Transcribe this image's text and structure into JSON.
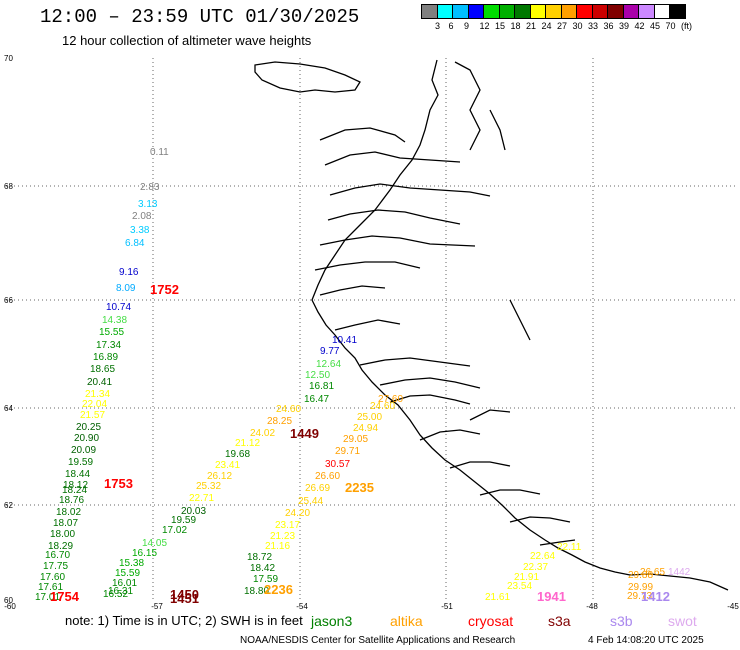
{
  "header": {
    "title": "12:00 – 23:59 UTC 01/30/2025",
    "subtitle": "12 hour collection of altimeter wave heights"
  },
  "scale": {
    "colors": [
      "#808080",
      "#00ffff",
      "#00bfff",
      "#0000ff",
      "#00dd00",
      "#00b000",
      "#007800",
      "#ffff00",
      "#ffd000",
      "#ffa000",
      "#ff0000",
      "#cc0000",
      "#800000",
      "#aa00aa",
      "#cc88ff",
      "#ffffff",
      "#000000"
    ],
    "labels": [
      "3",
      "6",
      "9",
      "12",
      "15",
      "18",
      "21",
      "24",
      "27",
      "30",
      "33",
      "36",
      "39",
      "42",
      "45",
      "70",
      "(ft)"
    ]
  },
  "axes": {
    "lat_labels": [
      "70",
      "68",
      "66",
      "64",
      "62",
      "60"
    ],
    "lon_labels": [
      "-60",
      "-57",
      "-54",
      "-51",
      "-48",
      "-45"
    ]
  },
  "readings": [
    {
      "t": "0.11",
      "c": "#808080"
    },
    {
      "t": "2.83",
      "c": "#808080"
    },
    {
      "t": "3.13",
      "c": "#00ccff"
    },
    {
      "t": "2.08",
      "c": "#808080"
    },
    {
      "t": "3.38",
      "c": "#00ccff"
    },
    {
      "t": "6.84",
      "c": "#00bfff"
    },
    {
      "t": "9.16",
      "c": "#0000cc"
    },
    {
      "t": "8.09",
      "c": "#00aaff"
    },
    {
      "t": "10.74",
      "c": "#0000cc"
    },
    {
      "t": "14.38",
      "c": "#44dd44"
    },
    {
      "t": "15.55",
      "c": "#00aa00"
    },
    {
      "t": "17.34",
      "c": "#008800"
    },
    {
      "t": "16.89",
      "c": "#008800"
    },
    {
      "t": "18.65",
      "c": "#007000"
    },
    {
      "t": "20.41",
      "c": "#006000"
    },
    {
      "t": "21.34",
      "c": "#ffff00"
    },
    {
      "t": "22.04",
      "c": "#ffff00"
    },
    {
      "t": "21.57",
      "c": "#ffff00"
    },
    {
      "t": "20.25",
      "c": "#006000"
    },
    {
      "t": "20.90",
      "c": "#006000"
    },
    {
      "t": "20.09",
      "c": "#006000"
    },
    {
      "t": "19.59",
      "c": "#007000"
    },
    {
      "t": "18.44",
      "c": "#007000"
    },
    {
      "t": "18.12",
      "c": "#007000"
    },
    {
      "t": "18.24",
      "c": "#007000"
    },
    {
      "t": "18.76",
      "c": "#007000"
    },
    {
      "t": "18.02",
      "c": "#007000"
    },
    {
      "t": "18.07",
      "c": "#007000"
    },
    {
      "t": "18.00",
      "c": "#007000"
    },
    {
      "t": "18.29",
      "c": "#007000"
    },
    {
      "t": "16.70",
      "c": "#008800"
    },
    {
      "t": "17.75",
      "c": "#008800"
    },
    {
      "t": "17.60",
      "c": "#008800"
    },
    {
      "t": "17.61",
      "c": "#008800"
    },
    {
      "t": "17.01",
      "c": "#008800"
    },
    {
      "t": "16.52",
      "c": "#008800"
    },
    {
      "t": "16.31",
      "c": "#008800"
    },
    {
      "t": "16.01",
      "c": "#008800"
    },
    {
      "t": "15.59",
      "c": "#00aa00"
    },
    {
      "t": "15.38",
      "c": "#00aa00"
    },
    {
      "t": "16.15",
      "c": "#00aa00"
    },
    {
      "t": "14.05",
      "c": "#44dd44"
    },
    {
      "t": "17.02",
      "c": "#008800"
    },
    {
      "t": "19.59",
      "c": "#007000"
    },
    {
      "t": "20.03",
      "c": "#006000"
    },
    {
      "t": "22.71",
      "c": "#ffff00"
    },
    {
      "t": "25.32",
      "c": "#ffd000"
    },
    {
      "t": "26.12",
      "c": "#ffd000"
    },
    {
      "t": "23.41",
      "c": "#ffff00"
    },
    {
      "t": "19.68",
      "c": "#007000"
    },
    {
      "t": "21.12",
      "c": "#ffff00"
    },
    {
      "t": "24.02",
      "c": "#ffd000"
    },
    {
      "t": "28.25",
      "c": "#ffa000"
    },
    {
      "t": "24.60",
      "c": "#ffd000"
    },
    {
      "t": "18.72",
      "c": "#007000"
    },
    {
      "t": "18.42",
      "c": "#007000"
    },
    {
      "t": "17.59",
      "c": "#008800"
    },
    {
      "t": "18.80",
      "c": "#007000"
    },
    {
      "t": "21.16",
      "c": "#ffff00"
    },
    {
      "t": "21.23",
      "c": "#ffff00"
    },
    {
      "t": "23.17",
      "c": "#ffff00"
    },
    {
      "t": "24.20",
      "c": "#ffd000"
    },
    {
      "t": "25.44",
      "c": "#ffd000"
    },
    {
      "t": "26.69",
      "c": "#ffd000"
    },
    {
      "t": "26.60",
      "c": "#ffa000"
    },
    {
      "t": "30.57",
      "c": "#ff0000"
    },
    {
      "t": "29.71",
      "c": "#ffa000"
    },
    {
      "t": "29.05",
      "c": "#ffa000"
    },
    {
      "t": "24.94",
      "c": "#ffd000"
    },
    {
      "t": "25.00",
      "c": "#ffd000"
    },
    {
      "t": "24.60",
      "c": "#ffd000"
    },
    {
      "t": "27.60",
      "c": "#ffa000"
    },
    {
      "t": "16.47",
      "c": "#008800"
    },
    {
      "t": "16.81",
      "c": "#008800"
    },
    {
      "t": "12.50",
      "c": "#44dd44"
    },
    {
      "t": "12.64",
      "c": "#44dd44"
    },
    {
      "t": "9.77",
      "c": "#0000cc"
    },
    {
      "t": "10.41",
      "c": "#0000cc"
    },
    {
      "t": "21.61",
      "c": "#ffff00"
    },
    {
      "t": "23.54",
      "c": "#ffff00"
    },
    {
      "t": "21.91",
      "c": "#ffff00"
    },
    {
      "t": "22.37",
      "c": "#ffff00"
    },
    {
      "t": "22.64",
      "c": "#ffff00"
    },
    {
      "t": "22.11",
      "c": "#ffff00"
    },
    {
      "t": "29.73",
      "c": "#ffa000"
    },
    {
      "t": "29.99",
      "c": "#ffa000"
    },
    {
      "t": "29.88",
      "c": "#ffa000"
    },
    {
      "t": "26.65",
      "c": "#ffa000"
    },
    {
      "t": "1442",
      "c": "#ddaaee"
    }
  ],
  "track_times": [
    {
      "t": "1752",
      "c": "#ff0000"
    },
    {
      "t": "1753",
      "c": "#ff0000"
    },
    {
      "t": "1754",
      "c": "#ff0000"
    },
    {
      "t": "1450",
      "c": "#800000"
    },
    {
      "t": "1451",
      "c": "#800000"
    },
    {
      "t": "1449",
      "c": "#800000"
    },
    {
      "t": "2235",
      "c": "#ffa000"
    },
    {
      "t": "2236",
      "c": "#ffa000"
    },
    {
      "t": "1941",
      "c": "#ff66cc"
    },
    {
      "t": "1412",
      "c": "#aa88ee"
    }
  ],
  "footer": {
    "note": "note: 1) Time is in UTC; 2) SWH is in feet",
    "satellites": [
      {
        "name": "jason3",
        "color": "#008000"
      },
      {
        "name": "altika",
        "color": "#ffa000"
      },
      {
        "name": "cryosat",
        "color": "#ff0000"
      },
      {
        "name": "s3a",
        "color": "#800000"
      },
      {
        "name": "s3b",
        "color": "#aa88ee"
      },
      {
        "name": "swot",
        "color": "#ddaaee"
      }
    ],
    "credit": "NOAA/NESDIS Center for Satellite Applications and Research",
    "timestamp": "4 Feb 14:08:20 UTC 2025"
  }
}
